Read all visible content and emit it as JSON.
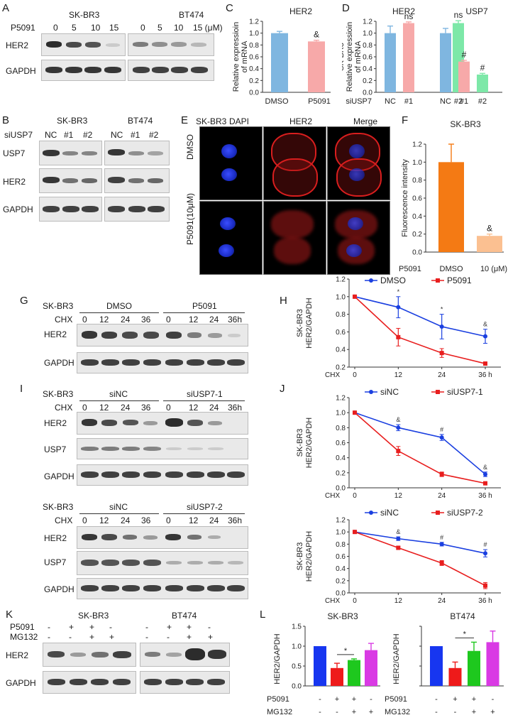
{
  "panels": {
    "A": {
      "label": "A",
      "cells": [
        "SK-BR3",
        "BT474"
      ],
      "treat_label": "P5091",
      "doses_left": [
        "0",
        "5",
        "10",
        "15"
      ],
      "doses_right": [
        "0",
        "5",
        "10",
        "15 (μM)"
      ],
      "rows": [
        "HER2",
        "GAPDH"
      ],
      "her2_left": [
        0.95,
        0.8,
        0.75,
        0.15
      ],
      "her2_right": [
        0.55,
        0.45,
        0.4,
        0.25
      ]
    },
    "B": {
      "label": "B",
      "cells": [
        "SK-BR3",
        "BT474"
      ],
      "treat_label": "siUSP7",
      "lanes": [
        "NC",
        "#1",
        "#2",
        "NC",
        "#1",
        "#2"
      ],
      "rows": [
        "USP7",
        "HER2",
        "GAPDH"
      ]
    },
    "C": {
      "label": "C",
      "gene": "HER2",
      "cat_sup": "&"
    },
    "D": {
      "label": "D",
      "genes": [
        "HER2",
        "USP7"
      ],
      "treat_label": "siUSP7",
      "sig": [
        "ns",
        "ns",
        "#",
        "#"
      ]
    },
    "E": {
      "label": "E",
      "cell": "SK-BR3",
      "cols": [
        "DAPI",
        "HER2",
        "Merge"
      ],
      "rows": [
        "DMSO",
        "P5091(10μM)"
      ]
    },
    "F": {
      "label": "F",
      "title": "SK-BR3",
      "treat_label": "P5091",
      "sig": "&"
    },
    "G": {
      "label": "G",
      "cell": "SK-BR3",
      "cond": "CHX",
      "groups": [
        "DMSO",
        "P5091"
      ],
      "times": [
        "0",
        "12",
        "24",
        "36",
        "0",
        "12",
        "24",
        "36h"
      ],
      "rows": [
        "HER2",
        "GAPDH"
      ]
    },
    "H": {
      "label": "H"
    },
    "I": {
      "label": "I",
      "cell": "SK-BR3",
      "cond": "CHX",
      "groups1": [
        "siNC",
        "siUSP7-1"
      ],
      "groups2": [
        "siNC",
        "siUSP7-2"
      ],
      "times": [
        "0",
        "12",
        "24",
        "36",
        "0",
        "12",
        "24",
        "36h"
      ],
      "rows": [
        "HER2",
        "USP7",
        "GAPDH"
      ]
    },
    "J": {
      "label": "J"
    },
    "K": {
      "label": "K",
      "cells": [
        "SK-BR3",
        "BT474"
      ],
      "treat1": "P5091",
      "treat2": "MG132",
      "p5091": [
        "-",
        "+",
        "+",
        "-"
      ],
      "mg132": [
        "-",
        "-",
        "+",
        "+"
      ],
      "rows": [
        "HER2",
        "GAPDH"
      ]
    },
    "L": {
      "label": "L"
    }
  },
  "colors": {
    "blue": "#1a3fe0",
    "red": "#e81e1e",
    "orange": "#f47a14",
    "peach": "#fbc091",
    "skyblue": "#7fb6e0",
    "pink": "#f7a9a9",
    "mint": "#7de8a8",
    "barBlue": "#1736f0",
    "barRed": "#ee1a1a",
    "barGreen": "#1ec81e",
    "barMagenta": "#d93ae4"
  },
  "chart_data": [
    {
      "id": "C",
      "type": "bar",
      "title": "HER2",
      "ylabel": "SK-BR3 Relative expressioin of mRNA",
      "categories": [
        "DMSO",
        "P5091"
      ],
      "values": [
        1.0,
        0.86
      ],
      "errors": [
        0.03,
        0.02
      ],
      "ylim": [
        0,
        1.2
      ],
      "yticks": [
        "0.0",
        "0.2",
        "0.4",
        "0.6",
        "0.8",
        "1.0",
        "1.2"
      ],
      "annotations": [
        "",
        "&"
      ]
    },
    {
      "id": "D",
      "type": "bar",
      "ylabel": "SK-BR3 Relative expressioin of mRNA",
      "xlabel": "siUSP7",
      "categories": [
        "NC",
        "#1",
        "#2",
        "NC",
        "#1",
        "#2"
      ],
      "values": [
        1.0,
        1.17,
        1.17,
        1.0,
        0.52,
        0.3
      ],
      "errors": [
        0.12,
        0.02,
        0.04,
        0.08,
        0.02,
        0.02
      ],
      "ylim": [
        0,
        1.2
      ],
      "yticks": [
        "0.0",
        "0.2",
        "0.4",
        "0.6",
        "0.8",
        "1.0",
        "1.2"
      ],
      "annotations": [
        "",
        "ns",
        "ns",
        "",
        "#",
        "#"
      ]
    },
    {
      "id": "F",
      "type": "bar",
      "ylabel": "Fluorescence intensity",
      "xlabel": "P5091",
      "categories": [
        "DMSO",
        "10 (μM)"
      ],
      "values": [
        1.0,
        0.18
      ],
      "errors": [
        0.2,
        0.02
      ],
      "ylim": [
        0,
        1.2
      ],
      "yticks": [
        "0.0",
        "0.2",
        "0.4",
        "0.6",
        "0.8",
        "1.0",
        "1.2"
      ],
      "annotations": [
        "",
        "&"
      ]
    },
    {
      "id": "H",
      "type": "line",
      "ylabel": "SK-BR3 HER2/GAPDH",
      "xlabel": "CHX",
      "x": [
        0,
        12,
        24,
        36
      ],
      "xticks": [
        "0",
        "12",
        "24",
        "36 h"
      ],
      "series": [
        {
          "name": "DMSO",
          "values": [
            1.0,
            0.88,
            0.66,
            0.55
          ],
          "errors": [
            0,
            0.12,
            0.14,
            0.08
          ]
        },
        {
          "name": "P5091",
          "values": [
            1.0,
            0.54,
            0.36,
            0.24
          ],
          "errors": [
            0,
            0.1,
            0.05,
            0.01
          ]
        }
      ],
      "ylim": [
        0.2,
        1.2
      ],
      "yticks": [
        "0.2",
        "0.4",
        "0.6",
        "0.8",
        "1.0",
        "1.2"
      ],
      "annotations": [
        "",
        "*",
        "*",
        "&"
      ]
    },
    {
      "id": "J1",
      "type": "line",
      "ylabel": "SK-BR3 HER2/GAPDH",
      "xlabel": "CHX",
      "x": [
        0,
        12,
        24,
        36
      ],
      "xticks": [
        "0",
        "12",
        "24",
        "36 h"
      ],
      "series": [
        {
          "name": "siNC",
          "values": [
            1.0,
            0.8,
            0.67,
            0.18
          ],
          "errors": [
            0,
            0.04,
            0.04,
            0.03
          ]
        },
        {
          "name": "siUSP7-1",
          "values": [
            1.0,
            0.49,
            0.18,
            0.06
          ],
          "errors": [
            0,
            0.06,
            0.03,
            0.01
          ]
        }
      ],
      "ylim": [
        0,
        1.2
      ],
      "yticks": [
        "0.0",
        "0.2",
        "0.4",
        "0.6",
        "0.8",
        "1.0",
        "1.2"
      ],
      "annotations": [
        "",
        "&",
        "#",
        "&"
      ]
    },
    {
      "id": "J2",
      "type": "line",
      "ylabel": "SK-BR3 HER2/GAPDH",
      "xlabel": "CHX",
      "x": [
        0,
        12,
        24,
        36
      ],
      "xticks": [
        "0",
        "12",
        "24",
        "36 h"
      ],
      "series": [
        {
          "name": "siNC",
          "values": [
            1.0,
            0.89,
            0.8,
            0.65
          ],
          "errors": [
            0,
            0.03,
            0.03,
            0.06
          ]
        },
        {
          "name": "siUSP7-2",
          "values": [
            1.0,
            0.74,
            0.49,
            0.12
          ],
          "errors": [
            0,
            0.02,
            0.04,
            0.05
          ]
        }
      ],
      "ylim": [
        0,
        1.2
      ],
      "yticks": [
        "0.0",
        "0.2",
        "0.4",
        "0.6",
        "0.8",
        "1.0",
        "1.2"
      ],
      "annotations": [
        "",
        "&",
        "#",
        "#"
      ]
    },
    {
      "id": "L1",
      "type": "bar",
      "title": "SK-BR3",
      "ylabel": "HER2/GAPDH",
      "categories": [
        "1",
        "2",
        "3",
        "4"
      ],
      "values": [
        1.0,
        0.45,
        0.65,
        0.9
      ],
      "errors": [
        0,
        0.12,
        0.03,
        0.17
      ],
      "ylim": [
        0,
        1.5
      ],
      "yticks": [
        "0.0",
        "0.5",
        "1.0",
        "1.5"
      ],
      "p5091": [
        "-",
        "+",
        "+",
        "-"
      ],
      "mg132": [
        "-",
        "-",
        "+",
        "+"
      ],
      "sig": "*"
    },
    {
      "id": "L2",
      "type": "bar",
      "title": "BT474",
      "ylabel": "HER2/GAPDH",
      "categories": [
        "1",
        "2",
        "3",
        "4"
      ],
      "values": [
        1.0,
        0.45,
        0.88,
        1.1
      ],
      "errors": [
        0,
        0.15,
        0.22,
        0.28
      ],
      "ylim": [
        0,
        1.5
      ],
      "p5091": [
        "-",
        "+",
        "+",
        "-"
      ],
      "mg132": [
        "-",
        "-",
        "+",
        "+"
      ],
      "sig": "*"
    }
  ]
}
